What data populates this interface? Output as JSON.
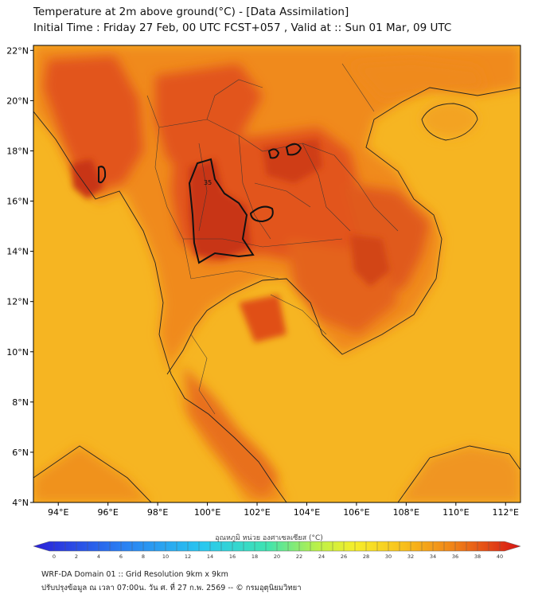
{
  "header": {
    "title_line1": "Temperature at 2m above ground(°C) - [Data Assimilation]",
    "title_line2": "Initial Time : Friday 27 Feb, 00 UTC FCST+057 , Valid at :: Sun 01 Mar, 09 UTC"
  },
  "map": {
    "lat_labels": [
      "22°N",
      "20°N",
      "18°N",
      "16°N",
      "14°N",
      "12°N",
      "10°N",
      "8°N",
      "6°N",
      "4°N"
    ],
    "lat_values": [
      22,
      20,
      18,
      16,
      14,
      12,
      10,
      8,
      6,
      4
    ],
    "lon_labels": [
      "94°E",
      "96°E",
      "98°E",
      "100°E",
      "102°E",
      "104°E",
      "106°E",
      "108°E",
      "110°E",
      "112°E"
    ],
    "lon_values": [
      94,
      96,
      98,
      100,
      102,
      104,
      106,
      108,
      110,
      112
    ],
    "contour_label": "35",
    "colors": {
      "sea": "#f6b522",
      "warm": "#f08a1a",
      "hot": "#e2551a",
      "hottest": "#c83412",
      "frame": "#000000"
    }
  },
  "colorbar": {
    "title": "อุณหภูมิ หน่วย องศาเซลเซียส (°C)",
    "ticks": [
      "0",
      "2",
      "4",
      "6",
      "8",
      "10",
      "12",
      "14",
      "16",
      "18",
      "20",
      "22",
      "24",
      "26",
      "28",
      "30",
      "32",
      "34",
      "36",
      "38",
      "40"
    ]
  },
  "footer": {
    "line1": "WRF-DA Domain 01 :: Grid Resolution 9km x 9km",
    "line2": "ปรับปรุงข้อมูล ณ เวลา 07:00น. วัน ศ. ที่ 27 ก.พ. 2569 -- © กรมอุตุนิยมวิทยา"
  }
}
